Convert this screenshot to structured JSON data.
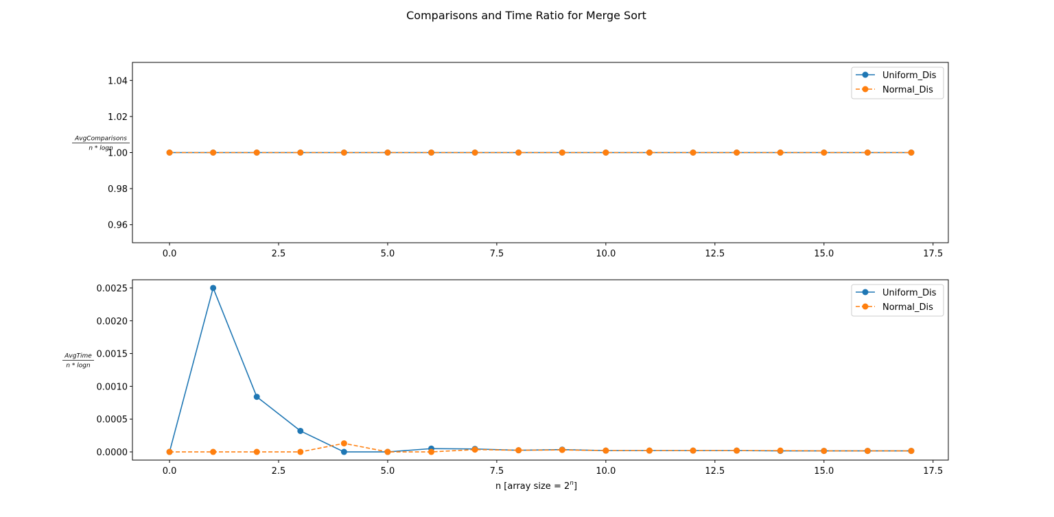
{
  "figure": {
    "suptitle": "Comparisons and Time Ratio for Merge Sort"
  },
  "colors": {
    "uniform": "#1f77b4",
    "normal": "#ff7f0e",
    "axes": "#000000",
    "background": "#ffffff"
  },
  "chart_data": [
    {
      "type": "line",
      "title": "",
      "xlabel": "",
      "ylabel_numerator": "AvgComparisons",
      "ylabel_denominator": "n * logn",
      "xlim": [
        -0.85,
        17.85
      ],
      "ylim": [
        0.95,
        1.05
      ],
      "xticks": [
        0.0,
        2.5,
        5.0,
        7.5,
        10.0,
        12.5,
        15.0,
        17.5
      ],
      "xtick_labels": [
        "0.0",
        "2.5",
        "5.0",
        "7.5",
        "10.0",
        "12.5",
        "15.0",
        "17.5"
      ],
      "yticks": [
        0.96,
        0.98,
        1.0,
        1.02,
        1.04
      ],
      "ytick_labels": [
        "0.96",
        "0.98",
        "1.00",
        "1.02",
        "1.04"
      ],
      "grid": false,
      "legend_position": "top-right",
      "x": [
        0,
        1,
        2,
        3,
        4,
        5,
        6,
        7,
        8,
        9,
        10,
        11,
        12,
        13,
        14,
        15,
        16,
        17
      ],
      "series": [
        {
          "name": "Uniform_Dis",
          "style": "solid",
          "values": [
            1,
            1,
            1,
            1,
            1,
            1,
            1,
            1,
            1,
            1,
            1,
            1,
            1,
            1,
            1,
            1,
            1,
            1
          ]
        },
        {
          "name": "Normal_Dis",
          "style": "dashed",
          "values": [
            1,
            1,
            1,
            1,
            1,
            1,
            1,
            1,
            1,
            1,
            1,
            1,
            1,
            1,
            1,
            1,
            1,
            1
          ]
        }
      ]
    },
    {
      "type": "line",
      "title": "",
      "xlabel": "n [array size = 2^n]",
      "xlabel_text": "n [array size = 2",
      "xlabel_sup": "n",
      "xlabel_end": "]",
      "ylabel_numerator": "AvgTime",
      "ylabel_denominator": "n * logn",
      "xlim": [
        -0.85,
        17.85
      ],
      "ylim": [
        -0.000125,
        0.002625
      ],
      "xticks": [
        0.0,
        2.5,
        5.0,
        7.5,
        10.0,
        12.5,
        15.0,
        17.5
      ],
      "xtick_labels": [
        "0.0",
        "2.5",
        "5.0",
        "7.5",
        "10.0",
        "12.5",
        "15.0",
        "17.5"
      ],
      "yticks": [
        0.0,
        0.0005,
        0.001,
        0.0015,
        0.002,
        0.0025
      ],
      "ytick_labels": [
        "0.0000",
        "0.0005",
        "0.0010",
        "0.0015",
        "0.0020",
        "0.0025"
      ],
      "grid": false,
      "legend_position": "top-right",
      "x": [
        0,
        1,
        2,
        3,
        4,
        5,
        6,
        7,
        8,
        9,
        10,
        11,
        12,
        13,
        14,
        15,
        16,
        17
      ],
      "series": [
        {
          "name": "Uniform_Dis",
          "style": "solid",
          "values": [
            0.0,
            0.0025,
            0.00084,
            0.00032,
            0.0,
            0.0,
            5e-05,
            4.5e-05,
            2.5e-05,
            3.5e-05,
            2e-05,
            2e-05,
            2e-05,
            2e-05,
            1.5e-05,
            1.5e-05,
            1.5e-05,
            1.5e-05
          ]
        },
        {
          "name": "Normal_Dis",
          "style": "dashed",
          "values": [
            0.0,
            0.0,
            0.0,
            0.0,
            0.00013,
            0.0,
            0.0,
            3.5e-05,
            2.5e-05,
            3e-05,
            2e-05,
            2e-05,
            2e-05,
            2e-05,
            2e-05,
            1.5e-05,
            1.5e-05,
            1.5e-05
          ]
        }
      ]
    }
  ]
}
